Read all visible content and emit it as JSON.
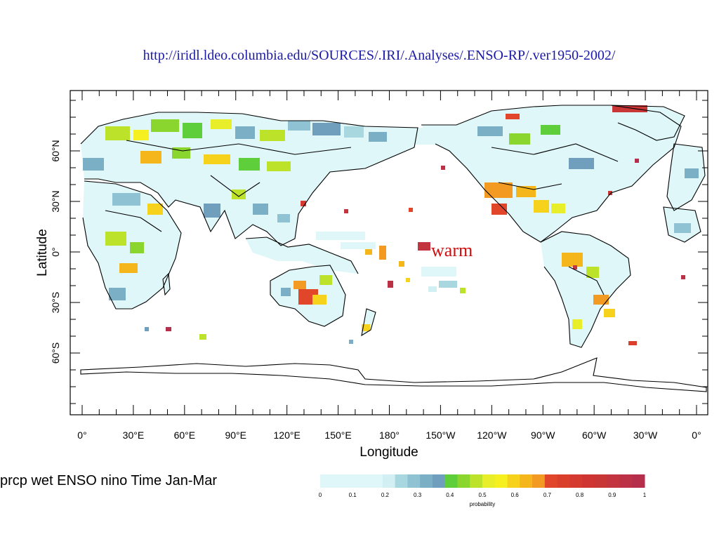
{
  "header": {
    "url": "http://iridl.ldeo.columbia.edu/SOURCES/.IRI/.Analyses/.ENSO-RP/.ver1950-2002/"
  },
  "map": {
    "x_ticks": [
      "0°",
      "30°E",
      "60°E",
      "90°E",
      "120°E",
      "150°E",
      "180°",
      "150°W",
      "120°W",
      "90°W",
      "60°W",
      "30°W",
      "0°"
    ],
    "y_ticks": [
      "60°N",
      "30°N",
      "0°",
      "30°S",
      "60°S"
    ],
    "xlabel": "Longitude",
    "ylabel": "Latitude",
    "annotation": "warm",
    "title": "prcp wet ENSO nino Time Jan-Mar"
  },
  "colorbar": {
    "tick_labels": [
      "0",
      "0.1",
      "0.2",
      "0.3",
      "0.4",
      "0.5",
      "0.6",
      "0.7",
      "0.8",
      "0.9",
      "1"
    ],
    "label": "probability",
    "colors": [
      "#dff7f9",
      "#dff7f9",
      "#dff7f9",
      "#dff7f9",
      "#dff7f9",
      "#d2eff4",
      "#a8d7e0",
      "#8fc3d4",
      "#7aafc6",
      "#6f9fbd",
      "#5ecf3a",
      "#8ad62e",
      "#bde22a",
      "#e8ef2a",
      "#f7f020",
      "#f7d21c",
      "#f5b61b",
      "#f39a22",
      "#e2462a",
      "#da3f2b",
      "#d43a2f",
      "#cf3532",
      "#c83636",
      "#c23440",
      "#bc3145",
      "#b52e4c"
    ]
  }
}
